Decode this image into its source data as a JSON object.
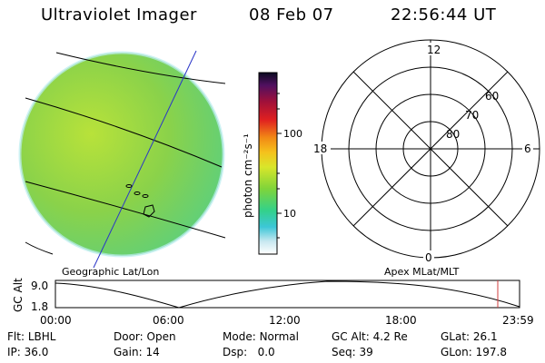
{
  "header": {
    "title": "Ultraviolet Imager",
    "date": "08 Feb 07",
    "time": "22:56:44 UT"
  },
  "colorbar": {
    "unit_label": "photon cm⁻²s⁻¹",
    "ticks": [
      "100",
      "10"
    ]
  },
  "polar_plot": {
    "clock_labels": [
      "12",
      "18",
      "6",
      "0"
    ],
    "lat_labels": [
      "60",
      "70",
      "80"
    ]
  },
  "image_captions": {
    "left": "Geographic Lat/Lon",
    "right": "Apex MLat/MLT"
  },
  "altitude_panel": {
    "axis_label": "GC Alt",
    "y_ticks": [
      "9.0",
      "1.8"
    ],
    "x_ticks": [
      "00:00",
      "06:00",
      "12:00",
      "18:00",
      "23:59"
    ]
  },
  "status": {
    "filter": {
      "label": "Flt:",
      "value": "LBHL"
    },
    "door": {
      "label": "Door:",
      "value": "Open"
    },
    "mode": {
      "label": "Mode:",
      "value": "Normal"
    },
    "gc_alt": {
      "label": "GC Alt:",
      "value": "4.2 Re"
    },
    "glat": {
      "label": "GLat:",
      "value": "26.1"
    },
    "ip": {
      "label": "IP:",
      "value": "36.0"
    },
    "gain": {
      "label": "Gain:",
      "value": "14"
    },
    "dsp": {
      "label": "Dsp:",
      "value": "0.0"
    },
    "seq": {
      "label": "Seq:",
      "value": "39"
    },
    "glon": {
      "label": "GLon:",
      "value": "197.8"
    }
  },
  "colors": {
    "earth_disk": "#8ad24a",
    "earth_disk_edge": "#5fcf7a",
    "grid_line": "#000000",
    "meridian_line": "#2a35c8",
    "current_time_marker": "#d23c3c"
  }
}
